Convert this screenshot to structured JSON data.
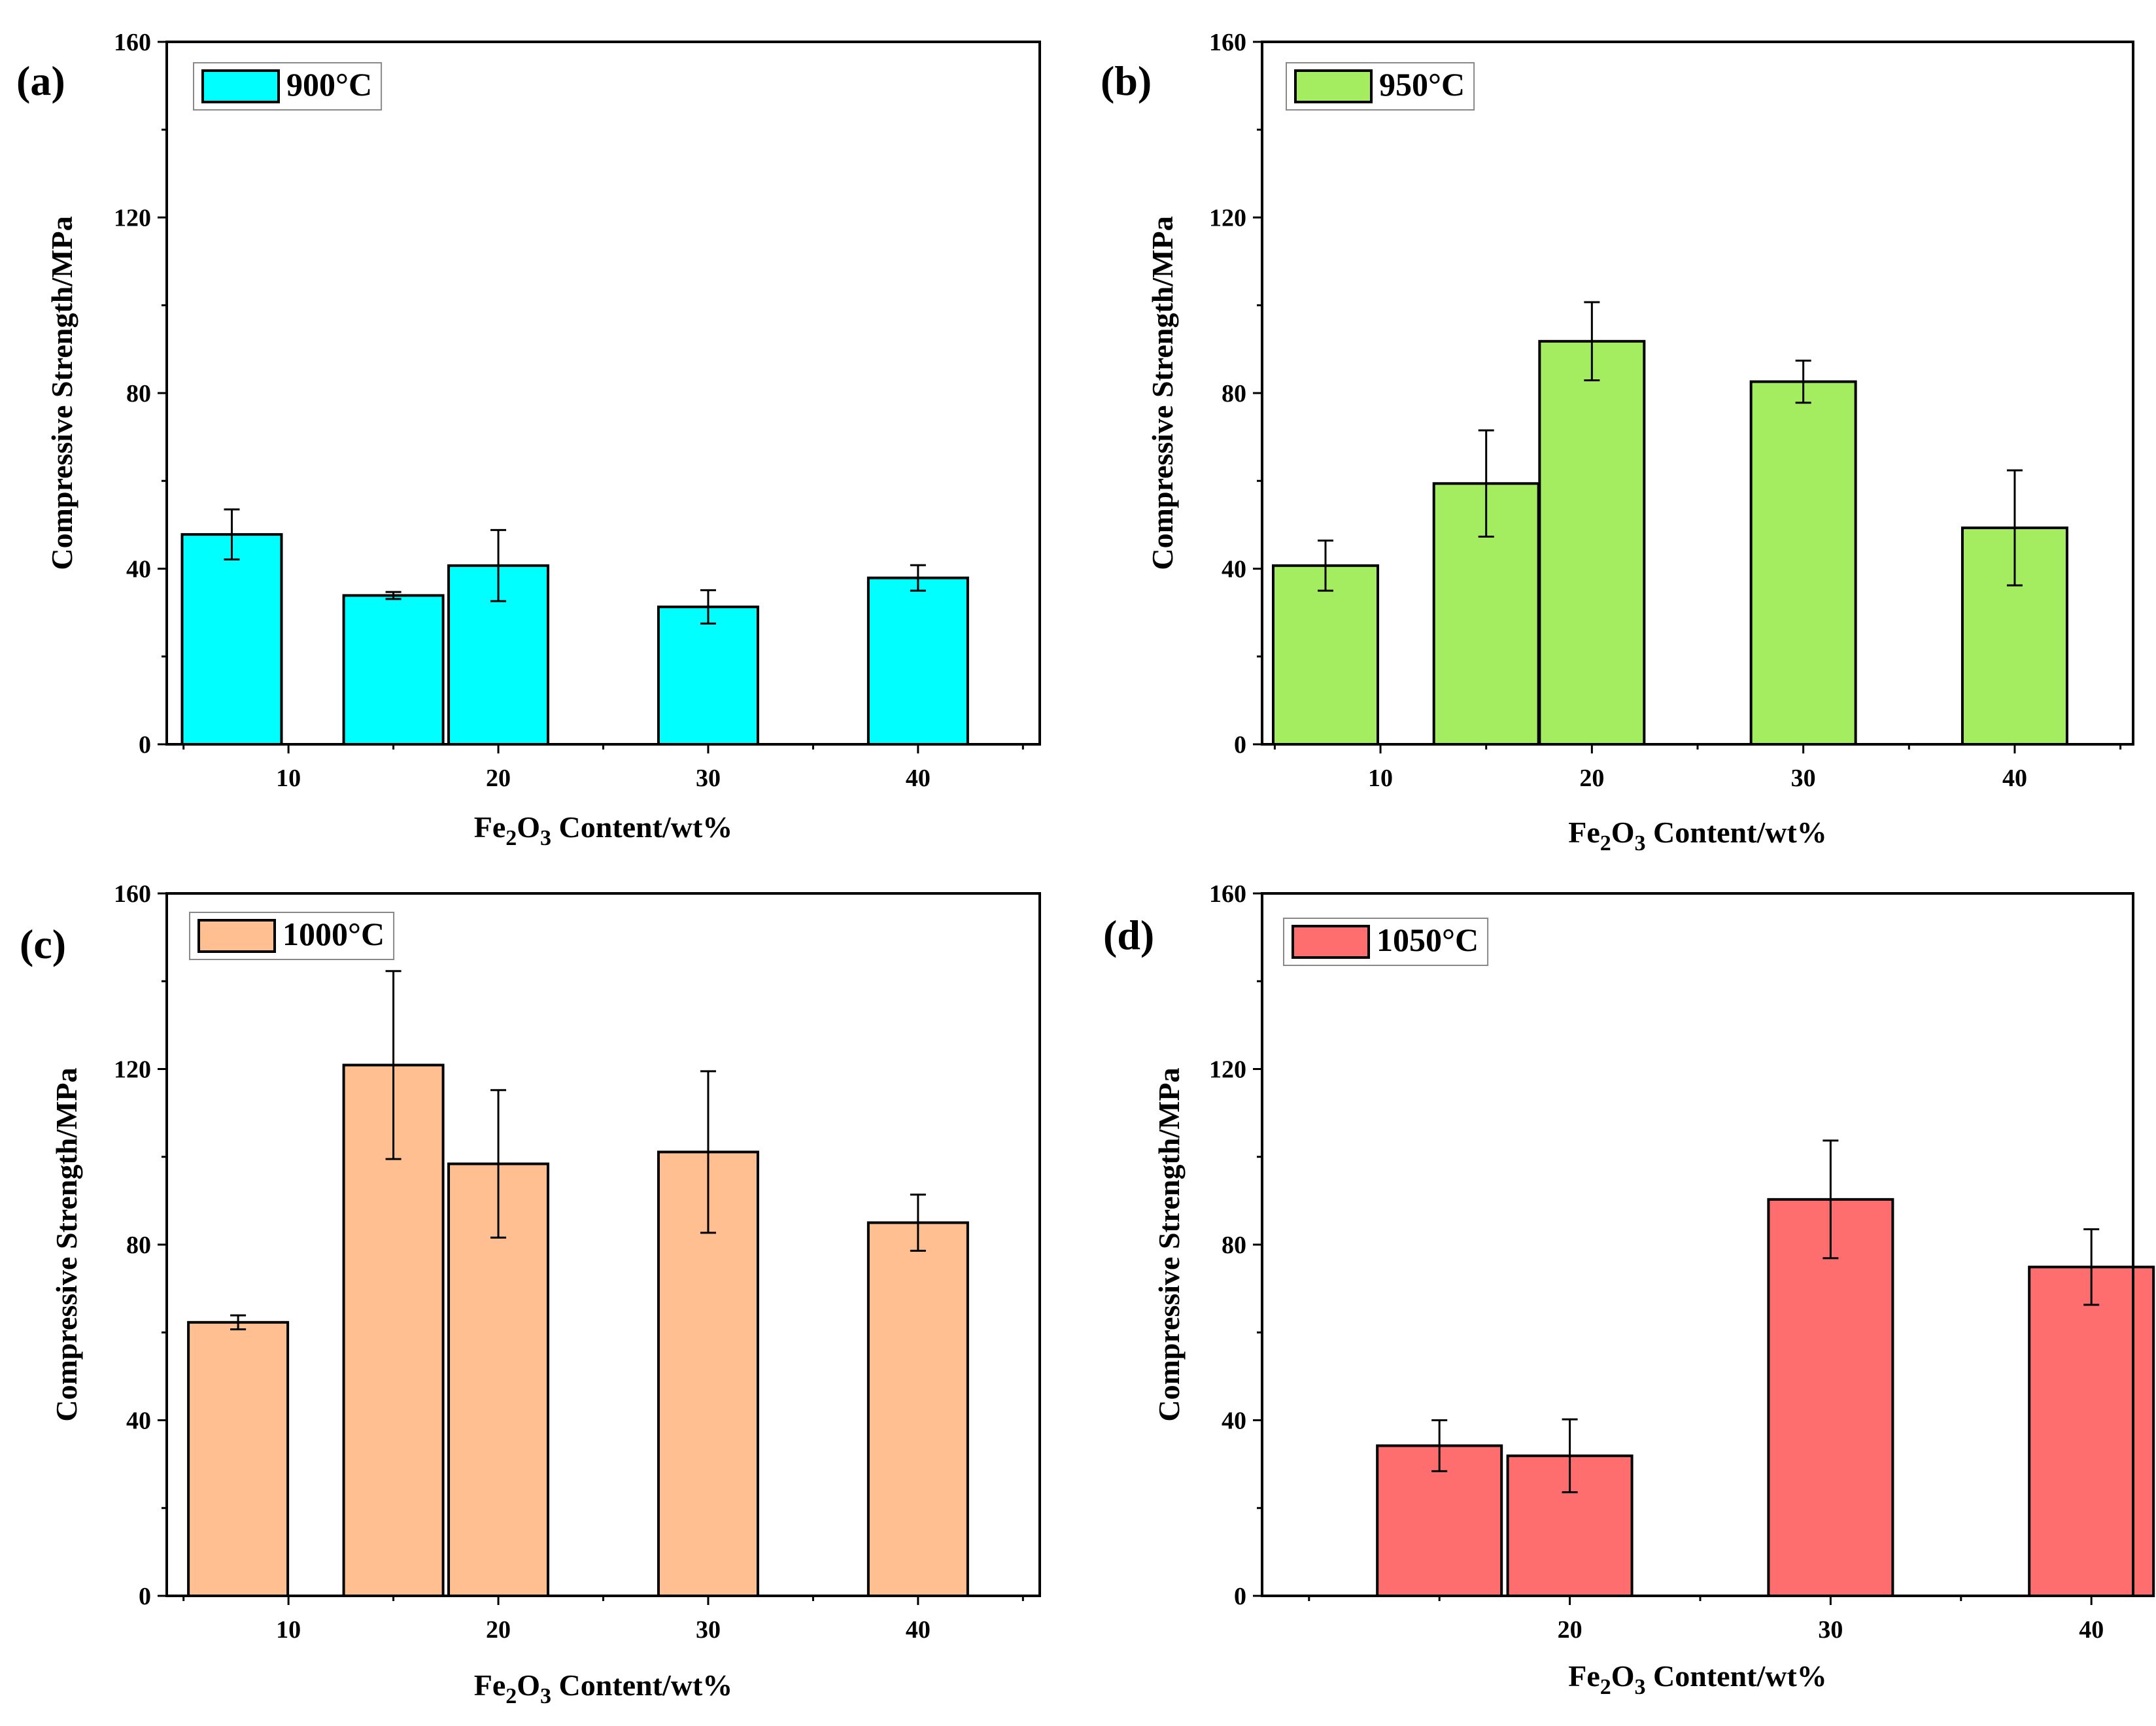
{
  "chart_data": [
    {
      "type": "bar",
      "panel": "(a)",
      "legend": "900°C",
      "color": "#00FFFF",
      "xlabel_prefix": "Fe",
      "xlabel_sub1": "2",
      "xlabel_mid": "O",
      "xlabel_sub2": "3",
      "xlabel_suffix": " Content/wt%",
      "ylabel": "Compressive Strength/MPa",
      "xlim": [
        4.2,
        45.8
      ],
      "ylim": [
        0,
        160
      ],
      "xticks": [
        10,
        20,
        30,
        40
      ],
      "yticks": [
        0,
        40,
        80,
        120,
        160
      ],
      "bars": [
        {
          "x": 7.3,
          "value": 47.8,
          "error": 5.7
        },
        {
          "x": 15.0,
          "value": 33.9,
          "error": 0.8
        },
        {
          "x": 20.0,
          "value": 40.7,
          "error": 8.1
        },
        {
          "x": 30.0,
          "value": 31.3,
          "error": 3.8
        },
        {
          "x": 40.0,
          "value": 37.9,
          "error": 2.9
        }
      ]
    },
    {
      "type": "bar",
      "panel": "(b)",
      "legend": "950°C",
      "color": "#A4ED60",
      "xlabel_prefix": "Fe",
      "xlabel_sub1": "2",
      "xlabel_mid": "O",
      "xlabel_sub2": "3",
      "xlabel_suffix": " Content/wt%",
      "ylabel": "Compressive Strength/MPa",
      "xlim": [
        4.4,
        45.6
      ],
      "ylim": [
        0,
        160
      ],
      "xticks": [
        10,
        20,
        30,
        40
      ],
      "yticks": [
        0,
        40,
        80,
        120,
        160
      ],
      "bars": [
        {
          "x": 7.4,
          "value": 40.7,
          "error": 5.7
        },
        {
          "x": 15.0,
          "value": 59.4,
          "error": 12.1
        },
        {
          "x": 20.0,
          "value": 91.8,
          "error": 8.9
        },
        {
          "x": 30.0,
          "value": 82.6,
          "error": 4.8
        },
        {
          "x": 40.0,
          "value": 49.3,
          "error": 13.1
        }
      ]
    },
    {
      "type": "bar",
      "panel": "(c)",
      "legend": "1000°C",
      "color": "#FFBF90",
      "xlabel_prefix": "Fe",
      "xlabel_sub1": "2",
      "xlabel_mid": "O",
      "xlabel_sub2": "3",
      "xlabel_suffix": " Content/wt%",
      "ylabel": "Compressive Strength/MPa",
      "xlim": [
        4.2,
        45.8
      ],
      "ylim": [
        0,
        160
      ],
      "xticks": [
        10,
        20,
        30,
        40
      ],
      "yticks": [
        0,
        40,
        80,
        120,
        160
      ],
      "bars": [
        {
          "x": 7.6,
          "value": 62.3,
          "error": 1.6
        },
        {
          "x": 15.0,
          "value": 120.9,
          "error": 21.4
        },
        {
          "x": 20.0,
          "value": 98.4,
          "error": 16.8
        },
        {
          "x": 30.0,
          "value": 101.1,
          "error": 18.4
        },
        {
          "x": 40.0,
          "value": 85.0,
          "error": 6.4
        }
      ]
    },
    {
      "type": "bar",
      "panel": "(d)",
      "legend": "1050°C",
      "color": "#FF6E6E",
      "xlabel_prefix": "Fe",
      "xlabel_sub1": "2",
      "xlabel_mid": "O",
      "xlabel_sub2": "3",
      "xlabel_suffix": " Content/wt%",
      "ylabel": "Compressive Strength/MPa",
      "xlim": [
        8.2,
        41.6
      ],
      "ylim": [
        0,
        160
      ],
      "xticks": [
        20,
        30,
        40
      ],
      "yticks": [
        0,
        40,
        80,
        120,
        160
      ],
      "bars": [
        {
          "x": 15.0,
          "value": 34.2,
          "error": 5.8
        },
        {
          "x": 20.0,
          "value": 31.9,
          "error": 8.3
        },
        {
          "x": 30.0,
          "value": 90.3,
          "error": 13.4
        },
        {
          "x": 40.0,
          "value": 74.9,
          "error": 8.6
        }
      ]
    }
  ]
}
